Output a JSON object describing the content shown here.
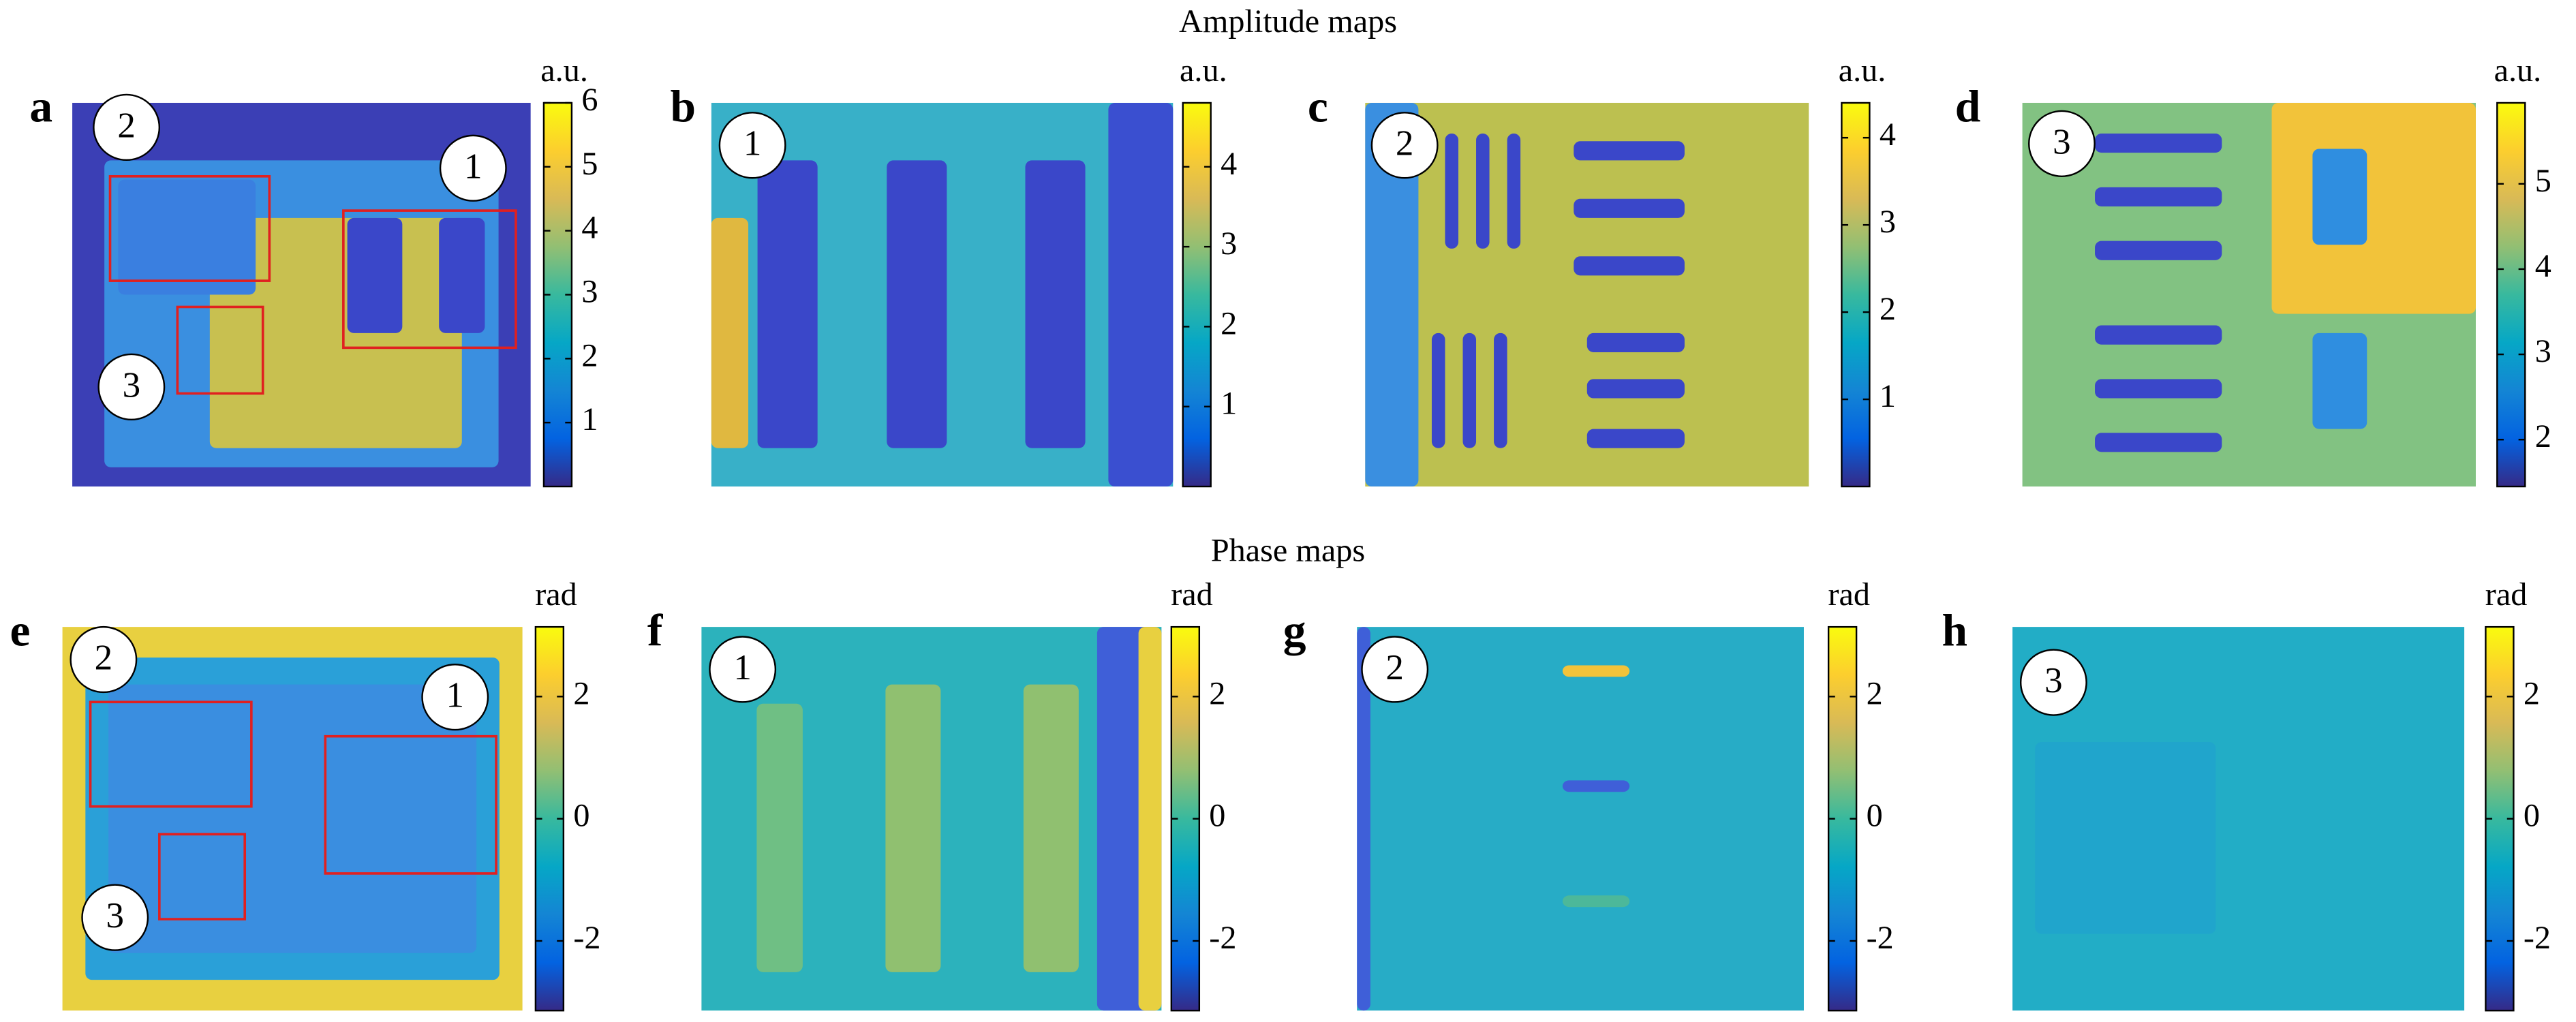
{
  "titles": [
    "Amplitude maps",
    "Phase maps"
  ],
  "chart_data": [
    {
      "type": "heatmap",
      "panel": "a",
      "colorbar_label": "a.u.",
      "colormap": "parula",
      "clim": [
        0,
        6
      ],
      "cticks": [
        1,
        2,
        3,
        4,
        5,
        6
      ],
      "markers": [
        "2",
        "1",
        "3"
      ]
    },
    {
      "type": "heatmap",
      "panel": "b",
      "colorbar_label": "a.u.",
      "colormap": "parula",
      "clim": [
        0,
        4.8
      ],
      "cticks": [
        1,
        2,
        3,
        4
      ],
      "markers": [
        "1"
      ]
    },
    {
      "type": "heatmap",
      "panel": "c",
      "colorbar_label": "a.u.",
      "colormap": "parula",
      "clim": [
        0,
        4.4
      ],
      "cticks": [
        1,
        2,
        3,
        4
      ],
      "markers": [
        "2"
      ]
    },
    {
      "type": "heatmap",
      "panel": "d",
      "colorbar_label": "a.u.",
      "colormap": "parula",
      "clim": [
        1.45,
        5.95
      ],
      "cticks": [
        2,
        3,
        4,
        5
      ],
      "markers": [
        "3"
      ]
    },
    {
      "type": "heatmap",
      "panel": "e",
      "colorbar_label": "rad",
      "colormap": "parula",
      "clim": [
        -3.14,
        3.14
      ],
      "cticks": [
        -2,
        0,
        2
      ],
      "markers": [
        "2",
        "1",
        "3"
      ]
    },
    {
      "type": "heatmap",
      "panel": "f",
      "colorbar_label": "rad",
      "colormap": "parula",
      "clim": [
        -3.14,
        3.14
      ],
      "cticks": [
        -2,
        0,
        2
      ],
      "markers": [
        "1"
      ]
    },
    {
      "type": "heatmap",
      "panel": "g",
      "colorbar_label": "rad",
      "colormap": "parula",
      "clim": [
        -3.14,
        3.14
      ],
      "cticks": [
        -2,
        0,
        2
      ],
      "markers": [
        "2"
      ]
    },
    {
      "type": "heatmap",
      "panel": "h",
      "colorbar_label": "rad",
      "colormap": "parula",
      "clim": [
        -3.14,
        3.14
      ],
      "cticks": [
        -2,
        0,
        2
      ],
      "markers": [
        "3"
      ]
    }
  ]
}
